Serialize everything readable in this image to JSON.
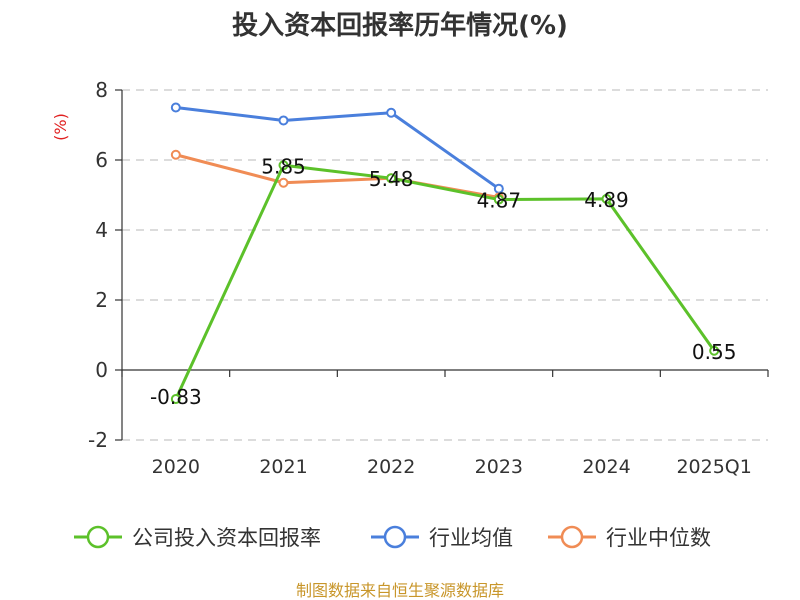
{
  "chart_data": {
    "type": "line",
    "title": "投入资本回报率历年情况(%)",
    "ylabel": "(%)",
    "ylabel_color": "#e02020",
    "categories": [
      "2020",
      "2021",
      "2022",
      "2023",
      "2024",
      "2025Q1"
    ],
    "ylim": [
      -2,
      8
    ],
    "yticks": [
      -2,
      0,
      2,
      4,
      6,
      8
    ],
    "grid": true,
    "legend_position": "bottom",
    "series": [
      {
        "name": "公司投入资本回报率",
        "color": "#5cc12a",
        "values": [
          -0.83,
          5.85,
          5.48,
          4.87,
          4.89,
          0.55
        ],
        "labels": [
          "-0.83",
          "5.85",
          "5.48",
          "4.87",
          "4.89",
          "0.55"
        ]
      },
      {
        "name": "行业均值",
        "color": "#4a7fdc",
        "values": [
          7.5,
          7.13,
          7.35,
          5.18,
          null,
          null
        ]
      },
      {
        "name": "行业中位数",
        "color": "#f08c55",
        "values": [
          6.15,
          5.35,
          5.48,
          4.93,
          null,
          null
        ]
      }
    ]
  },
  "source": {
    "text": "制图数据来自恒生聚源数据库",
    "color": "#c8962a"
  }
}
